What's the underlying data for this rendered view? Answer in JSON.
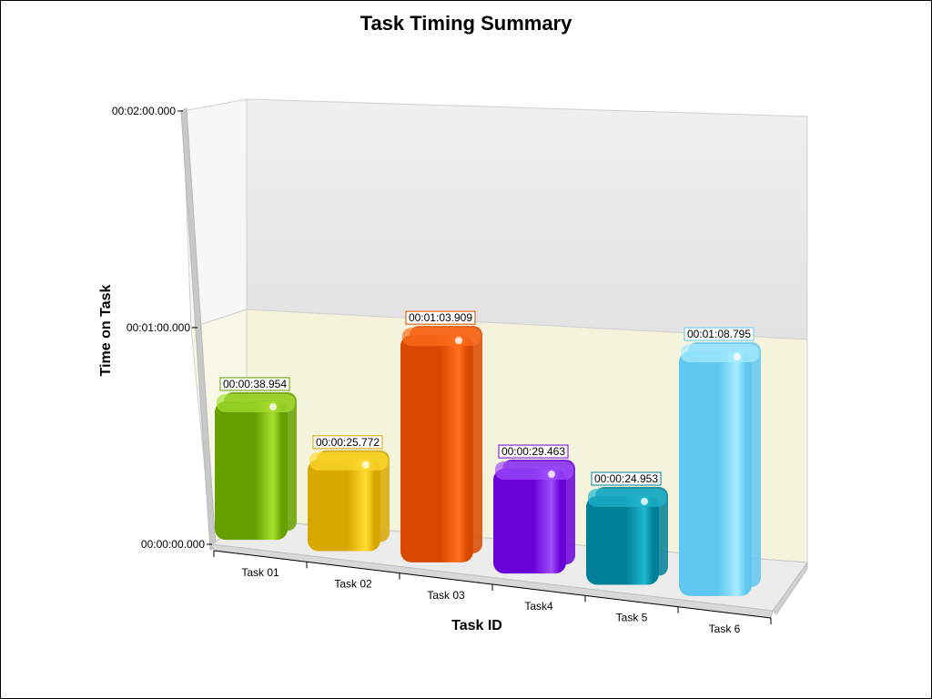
{
  "chart_data": {
    "type": "bar",
    "title": "Task Timing Summary",
    "xlabel": "Task ID",
    "ylabel": "Time on Task",
    "categories": [
      "Task 01",
      "Task 02",
      "Task 03",
      "Task4",
      "Task 5",
      "Task 6"
    ],
    "values": [
      38.954,
      25.772,
      63.909,
      29.463,
      24.953,
      68.795
    ],
    "value_labels": [
      "00:00:38.954",
      "00:00:25.772",
      "00:01:03.909",
      "00:00:29.463",
      "00:00:24.953",
      "00:01:08.795"
    ],
    "y_ticks": [
      {
        "value": 0,
        "label": "00:00:00.000"
      },
      {
        "value": 60,
        "label": "00:01:00.000"
      },
      {
        "value": 120,
        "label": "00:02:00.000"
      }
    ],
    "ylim": [
      0,
      120
    ],
    "grid": true,
    "legend": "none",
    "colors": [
      "#66a000",
      "#d8a800",
      "#d84800",
      "#6a00d8",
      "#008098",
      "#60c8f0"
    ],
    "highlight_colors": [
      "#a8e030",
      "#ffdc30",
      "#ff7020",
      "#a050ff",
      "#20b8d0",
      "#a8ecff"
    ]
  }
}
